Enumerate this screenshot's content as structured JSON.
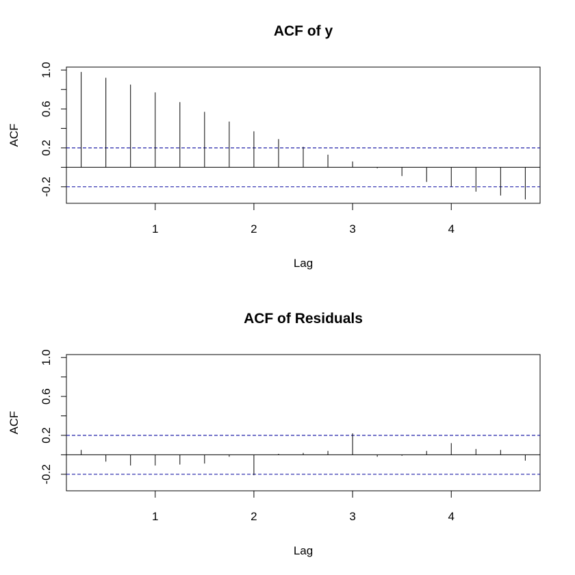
{
  "colors": {
    "confidence_line": "#1f1fa8",
    "bar": "#000000"
  },
  "chart_data": [
    {
      "type": "bar",
      "title": "ACF of y",
      "xlabel": "Lag",
      "ylabel": "ACF",
      "xlim": [
        0.1,
        4.9
      ],
      "ylim": [
        -0.37,
        1.03
      ],
      "xticks": [
        "1",
        "2",
        "3",
        "4"
      ],
      "yticks": [
        "-0.2",
        "0.2",
        "0.6",
        "1.0"
      ],
      "confidence_bound": 0.2,
      "lags": [
        0.25,
        0.5,
        0.75,
        1.0,
        1.25,
        1.5,
        1.75,
        2.0,
        2.25,
        2.5,
        2.75,
        3.0,
        3.25,
        3.5,
        3.75,
        4.0,
        4.25,
        4.5,
        4.75
      ],
      "values": [
        0.98,
        0.92,
        0.85,
        0.77,
        0.67,
        0.57,
        0.47,
        0.37,
        0.29,
        0.21,
        0.13,
        0.06,
        -0.01,
        -0.09,
        -0.15,
        -0.2,
        -0.25,
        -0.29,
        -0.33
      ]
    },
    {
      "type": "bar",
      "title": "ACF of Residuals",
      "xlabel": "Lag",
      "ylabel": "ACF",
      "xlim": [
        0.1,
        4.9
      ],
      "ylim": [
        -0.37,
        1.03
      ],
      "xticks": [
        "1",
        "2",
        "3",
        "4"
      ],
      "yticks": [
        "-0.2",
        "0.2",
        "0.6",
        "1.0"
      ],
      "confidence_bound": 0.2,
      "lags": [
        0.25,
        0.5,
        0.75,
        1.0,
        1.25,
        1.5,
        1.75,
        2.0,
        2.25,
        2.5,
        2.75,
        3.0,
        3.25,
        3.5,
        3.75,
        4.0,
        4.25,
        4.5,
        4.75
      ],
      "values": [
        0.05,
        -0.07,
        -0.11,
        -0.11,
        -0.1,
        -0.09,
        -0.02,
        -0.21,
        0.01,
        0.02,
        0.04,
        0.22,
        -0.02,
        -0.01,
        0.04,
        0.12,
        0.06,
        0.05,
        -0.06
      ]
    }
  ]
}
